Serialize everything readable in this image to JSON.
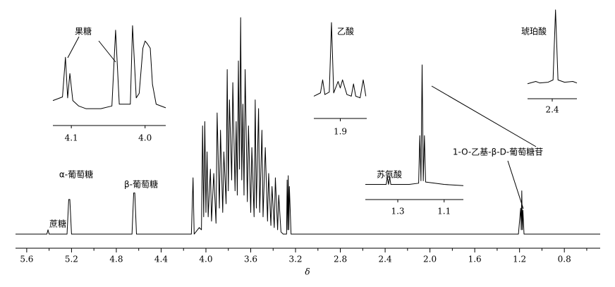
{
  "chart_data": [
    {
      "type": "line",
      "xlabel": "δ",
      "xlim": [
        5.7,
        0.48
      ],
      "ylim": [
        0,
        100
      ],
      "xticks": [
        5.6,
        5.2,
        4.8,
        4.4,
        {
          "value": 4.0,
          "label": "4.0"
        },
        3.6,
        3.2,
        2.8,
        2.4,
        {
          "value": 2.0,
          "label": "2.0"
        },
        1.6,
        1.2,
        0.8
      ],
      "xminor_ticks": [
        5.4,
        5.0,
        4.6,
        4.2,
        3.8,
        3.4,
        3.0,
        2.6,
        2.2,
        1.8,
        1.4,
        1.0,
        0.6
      ],
      "color": "#000000",
      "annotations": [
        "蔗糖",
        "α-葡萄糖",
        "β-葡萄糖",
        "1-O-乙基-β-D-葡萄糖苷"
      ],
      "x": [
        5.7,
        5.42,
        5.41,
        5.4,
        5.24,
        5.225,
        5.215,
        5.2,
        4.66,
        4.645,
        4.635,
        4.62,
        4.13,
        4.115,
        4.105,
        4.09,
        4.06,
        4.04,
        4.03,
        4.02,
        4.01,
        4.0,
        3.99,
        3.98,
        3.96,
        3.95,
        3.93,
        3.91,
        3.9,
        3.88,
        3.87,
        3.85,
        3.84,
        3.82,
        3.81,
        3.8,
        3.79,
        3.77,
        3.76,
        3.74,
        3.73,
        3.72,
        3.71,
        3.7,
        3.69,
        3.68,
        3.67,
        3.66,
        3.65,
        3.63,
        3.62,
        3.6,
        3.59,
        3.57,
        3.56,
        3.55,
        3.53,
        3.52,
        3.5,
        3.49,
        3.47,
        3.45,
        3.44,
        3.42,
        3.41,
        3.39,
        3.38,
        3.36,
        3.35,
        3.33,
        3.31,
        3.28,
        3.275,
        3.27,
        3.265,
        3.26,
        3.255,
        3.24,
        1.21,
        1.19,
        1.185,
        1.18,
        1.175,
        1.17,
        1.16,
        0.48
      ],
      "values": [
        0,
        0,
        2,
        0,
        0,
        16,
        16,
        0,
        0,
        19,
        19,
        0,
        0,
        26,
        0,
        1,
        3,
        2,
        50,
        8,
        52,
        10,
        38,
        8,
        30,
        6,
        28,
        5,
        56,
        12,
        48,
        10,
        38,
        14,
        76,
        20,
        62,
        25,
        70,
        20,
        52,
        18,
        80,
        30,
        100,
        25,
        60,
        18,
        76,
        15,
        50,
        10,
        40,
        8,
        62,
        12,
        58,
        10,
        48,
        8,
        40,
        6,
        28,
        4,
        22,
        3,
        26,
        2,
        18,
        1,
        0,
        0,
        25,
        2,
        27,
        2,
        22,
        0,
        0,
        12,
        2,
        20,
        2,
        11,
        0,
        0
      ]
    },
    {
      "type": "line",
      "xlim": [
        4.125,
        3.972
      ],
      "ylim": [
        0,
        100
      ],
      "xticks": [
        4.1,
        {
          "value": 4.0,
          "label": "4.0"
        }
      ],
      "color": "#000000",
      "annotations": [
        "果糖"
      ],
      "x": [
        4.125,
        4.112,
        4.108,
        4.105,
        4.102,
        4.098,
        4.09,
        4.08,
        4.06,
        4.045,
        4.04,
        4.035,
        4.02,
        4.017,
        4.012,
        4.008,
        4.003,
        4.0,
        3.997,
        3.993,
        3.99,
        3.985,
        3.972
      ],
      "values": [
        12,
        16,
        60,
        15,
        42,
        12,
        6,
        3,
        3,
        6,
        90,
        8,
        8,
        95,
        15,
        20,
        70,
        78,
        75,
        70,
        30,
        8,
        4
      ]
    },
    {
      "type": "line",
      "xlim": [
        1.96,
        1.84
      ],
      "ylim": [
        0,
        100
      ],
      "xticks": [
        1.9
      ],
      "color": "#000000",
      "annotations": [
        "乙酸"
      ],
      "x": [
        1.96,
        1.945,
        1.94,
        1.935,
        1.925,
        1.92,
        1.915,
        1.905,
        1.9,
        1.895,
        1.885,
        1.875,
        1.87,
        1.865,
        1.855,
        1.848,
        1.842
      ],
      "values": [
        10,
        14,
        30,
        12,
        15,
        100,
        14,
        28,
        20,
        30,
        12,
        10,
        25,
        10,
        8,
        30,
        10
      ]
    },
    {
      "type": "line",
      "xlim": [
        2.46,
        2.34
      ],
      "ylim": [
        0,
        100
      ],
      "xticks": [
        2.4
      ],
      "color": "#000000",
      "annotations": [
        "琥珀酸"
      ],
      "x": [
        2.46,
        2.44,
        2.43,
        2.41,
        2.398,
        2.392,
        2.386,
        2.37,
        2.35,
        2.34
      ],
      "values": [
        3,
        6,
        4,
        5,
        8,
        100,
        8,
        5,
        6,
        4
      ]
    },
    {
      "type": "line",
      "xlim": [
        1.44,
        1.017
      ],
      "ylim": [
        0,
        100
      ],
      "xticks": [
        1.3,
        1.1
      ],
      "color": "#000000",
      "annotations": [
        "苏氨酸"
      ],
      "x": [
        1.44,
        1.35,
        1.345,
        1.34,
        1.335,
        1.33,
        1.25,
        1.21,
        1.205,
        1.2,
        1.195,
        1.19,
        1.185,
        1.18,
        1.1,
        1.017
      ],
      "values": [
        2,
        2,
        8,
        2,
        8,
        2,
        2,
        3,
        42,
        5,
        100,
        5,
        42,
        4,
        2,
        1
      ]
    }
  ]
}
